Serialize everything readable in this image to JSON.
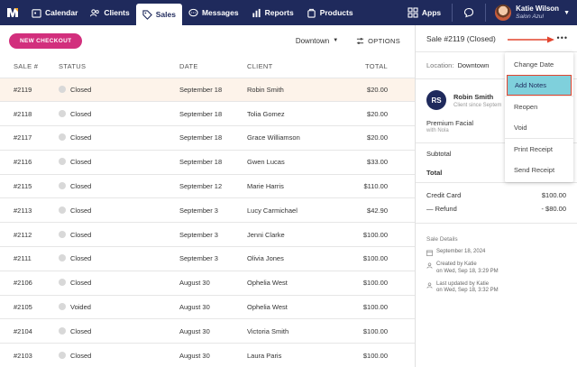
{
  "nav": {
    "items": [
      {
        "label": "Calendar",
        "icon": "calendar-icon"
      },
      {
        "label": "Clients",
        "icon": "clients-icon"
      },
      {
        "label": "Sales",
        "icon": "tag-icon"
      },
      {
        "label": "Messages",
        "icon": "messages-icon"
      },
      {
        "label": "Reports",
        "icon": "reports-icon"
      },
      {
        "label": "Products",
        "icon": "products-icon"
      }
    ],
    "apps_label": "Apps",
    "user_name": "Katie Wilson",
    "user_sub": "Salon Azul"
  },
  "toolbar": {
    "new_checkout": "NEW CHECKOUT",
    "location": "Downtown",
    "options": "OPTIONS"
  },
  "table": {
    "headers": {
      "sale": "SALE #",
      "status": "STATUS",
      "date": "DATE",
      "client": "CLIENT",
      "total": "TOTAL"
    },
    "rows": [
      {
        "sale": "#2119",
        "status": "Closed",
        "date": "September 18",
        "client": "Robin Smith",
        "total": "$20.00"
      },
      {
        "sale": "#2118",
        "status": "Closed",
        "date": "September 18",
        "client": "Tolia Gomez",
        "total": "$20.00"
      },
      {
        "sale": "#2117",
        "status": "Closed",
        "date": "September 18",
        "client": "Grace Williamson",
        "total": "$20.00"
      },
      {
        "sale": "#2116",
        "status": "Closed",
        "date": "September 18",
        "client": "Gwen Lucas",
        "total": "$33.00"
      },
      {
        "sale": "#2115",
        "status": "Closed",
        "date": "September 12",
        "client": "Marie Harris",
        "total": "$110.00"
      },
      {
        "sale": "#2113",
        "status": "Closed",
        "date": "September 3",
        "client": "Lucy Carmichael",
        "total": "$42.90"
      },
      {
        "sale": "#2112",
        "status": "Closed",
        "date": "September 3",
        "client": "Jenni Clarke",
        "total": "$100.00"
      },
      {
        "sale": "#2111",
        "status": "Closed",
        "date": "September 3",
        "client": "Olivia Jones",
        "total": "$100.00"
      },
      {
        "sale": "#2106",
        "status": "Closed",
        "date": "August 30",
        "client": "Ophelia West",
        "total": "$100.00"
      },
      {
        "sale": "#2105",
        "status": "Voided",
        "date": "August 30",
        "client": "Ophelia West",
        "total": "$100.00"
      },
      {
        "sale": "#2104",
        "status": "Closed",
        "date": "August 30",
        "client": "Victoria Smith",
        "total": "$100.00"
      },
      {
        "sale": "#2103",
        "status": "Closed",
        "date": "August 30",
        "client": "Laura Paris",
        "total": "$100.00"
      }
    ]
  },
  "panel": {
    "title": "Sale #2119 (Closed)",
    "more": "•••",
    "location_label": "Location:",
    "location": "Downtown",
    "client_initials": "RS",
    "client_name": "Robin Smith",
    "client_since": "Client since Septem",
    "service": "Premium Facial",
    "with": "with Nola",
    "subtotal_label": "Subtotal",
    "total_label": "Total",
    "credit_label": "Credit Card",
    "credit_value": "$100.00",
    "refund_label": "— Refund",
    "refund_value": "- $80.00",
    "details_heading": "Sale Details",
    "detail_date": "September 18, 2024",
    "created_line1": "Created by Katie",
    "created_line2": "on Wed, Sep 18, 3:29 PM",
    "updated_line1": "Last updated by Katie",
    "updated_line2": "on Wed, Sep 18, 3:32 PM"
  },
  "menu": {
    "items": [
      "Change Date",
      "Add Notes",
      "Reopen",
      "Void",
      "Print Receipt",
      "Send Receipt"
    ],
    "highlighted": "Add Notes"
  },
  "colors": {
    "nav_bg": "#1f2a5c",
    "accent": "#d22f7d",
    "highlight": "#7fd0dc",
    "annotation": "#e2452f"
  }
}
